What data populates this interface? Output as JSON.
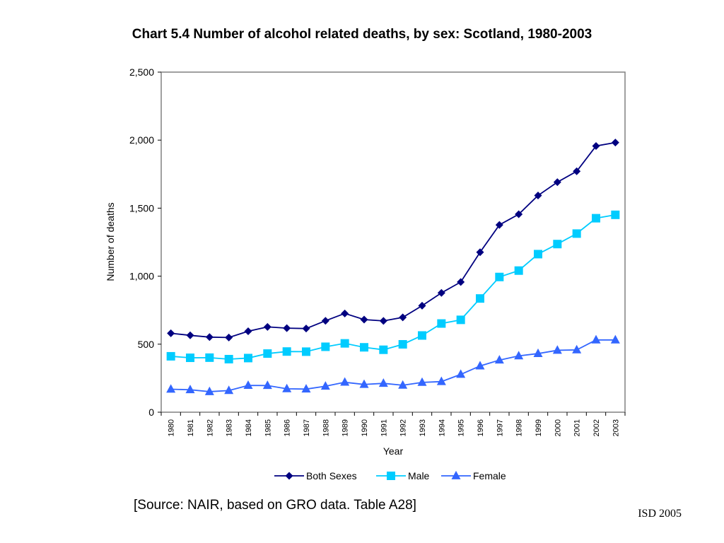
{
  "page": {
    "title": "Chart 5.4 Number of alcohol related deaths, by sex: Scotland, 1980-2003",
    "source": "[Source: NAIR, based on GRO data. Table A28]",
    "footer": "ISD 2005"
  },
  "chart_data": {
    "type": "line",
    "title": "Chart 5.4 Number of alcohol related deaths, by sex: Scotland, 1980-2003",
    "xlabel": "Year",
    "ylabel": "Number of deaths",
    "categories": [
      "1980",
      "1981",
      "1982",
      "1983",
      "1984",
      "1985",
      "1986",
      "1987",
      "1988",
      "1989",
      "1990",
      "1991",
      "1992",
      "1993",
      "1994",
      "1995",
      "1996",
      "1997",
      "1998",
      "1999",
      "2000",
      "2001",
      "2002",
      "2003"
    ],
    "ylim": [
      0,
      2500
    ],
    "yticks": [
      0,
      500,
      1000,
      1500,
      2000,
      2500
    ],
    "ytick_labels": [
      "0",
      "500",
      "1,000",
      "1,500",
      "2,000",
      "2,500"
    ],
    "grid": false,
    "legend_position": "bottom",
    "series": [
      {
        "name": "Both Sexes",
        "marker": "diamond",
        "color": "#000080",
        "values": [
          580,
          565,
          552,
          549,
          595,
          627,
          618,
          615,
          672,
          726,
          681,
          671,
          697,
          783,
          877,
          957,
          1176,
          1377,
          1455,
          1593,
          1691,
          1771,
          1957,
          1982
        ]
      },
      {
        "name": "Male",
        "marker": "square",
        "color": "#00ccff",
        "values": [
          411,
          400,
          401,
          390,
          398,
          431,
          446,
          445,
          481,
          506,
          477,
          459,
          499,
          564,
          652,
          679,
          836,
          994,
          1041,
          1162,
          1236,
          1313,
          1426,
          1451
        ]
      },
      {
        "name": "Female",
        "marker": "triangle",
        "color": "#3366ff",
        "values": [
          169,
          165,
          151,
          159,
          197,
          196,
          172,
          170,
          191,
          220,
          204,
          212,
          198,
          219,
          225,
          278,
          340,
          383,
          414,
          431,
          455,
          458,
          531,
          531
        ]
      }
    ]
  }
}
